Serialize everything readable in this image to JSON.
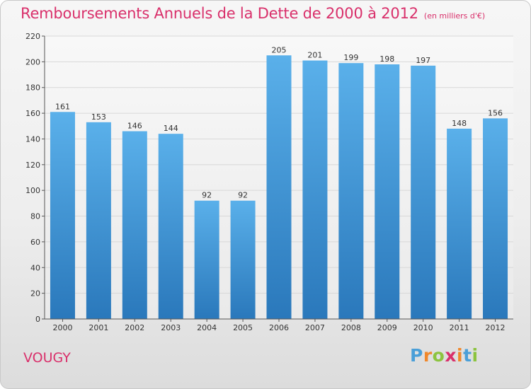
{
  "header": {
    "title": "Remboursements Annuels de la Dette de 2000 à 2012",
    "subtitle": "(en milliers d'€)"
  },
  "footer": {
    "commune": "VOUGY",
    "brand": "Proxiti",
    "brand_colors": [
      "#4a9fd8",
      "#f0882c",
      "#8cc43f",
      "#d9306b",
      "#f0882c",
      "#4a9fd8",
      "#8cc43f"
    ]
  },
  "colors": {
    "accent_text": "#d9306b",
    "bar_top": "#5ab0ea",
    "bar_bottom": "#2a78bb",
    "grid": "#d8d8d8",
    "axis": "#555555"
  },
  "chart_data": {
    "type": "bar",
    "categories": [
      "2000",
      "2001",
      "2002",
      "2003",
      "2004",
      "2005",
      "2006",
      "2007",
      "2008",
      "2009",
      "2010",
      "2011",
      "2012"
    ],
    "values": [
      161,
      153,
      146,
      144,
      92,
      92,
      205,
      201,
      199,
      198,
      197,
      148,
      156
    ],
    "ylim": [
      0,
      220
    ],
    "yticks": [
      0,
      20,
      40,
      60,
      80,
      100,
      120,
      140,
      160,
      180,
      200,
      220
    ],
    "grid": true,
    "data_labels": true
  }
}
